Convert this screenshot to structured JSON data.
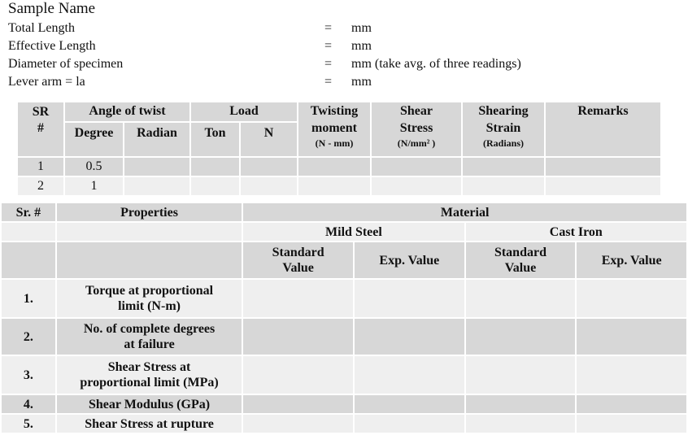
{
  "header": {
    "title": "Sample Name",
    "rows": [
      {
        "label": "Total Length",
        "eq": "=",
        "unit": "mm"
      },
      {
        "label": "Effective Length",
        "eq": "=",
        "unit": "mm"
      },
      {
        "label": "Diameter of specimen",
        "eq": "=",
        "unit": "mm (take avg. of three readings)"
      },
      {
        "label": "Lever arm = la",
        "eq": "=",
        "unit": "mm"
      }
    ]
  },
  "table1": {
    "sr_top": "SR",
    "sr_bottom": "#",
    "angle": "Angle of twist",
    "degree": "Degree",
    "radian": "Radian",
    "load": "Load",
    "ton": "Ton",
    "n": "N",
    "twisting_1": "Twisting",
    "twisting_2": "moment",
    "twisting_unit": "(N - mm)",
    "shear_1": "Shear",
    "shear_2": "Stress",
    "shear_unit": "(N/mm² )",
    "shearing_1": "Shearing",
    "shearing_2": "Strain",
    "shearing_unit": "(Radians)",
    "remarks": "Remarks",
    "rows": [
      {
        "sr": "1",
        "degree": "0.5"
      },
      {
        "sr": "2",
        "degree": "1"
      }
    ]
  },
  "table2": {
    "sr": "Sr. #",
    "properties": "Properties",
    "material": "Material",
    "mild_steel": "Mild Steel",
    "cast_iron": "Cast Iron",
    "standard_1": "Standard",
    "standard_2": "Value",
    "exp": "Exp. Value",
    "rows": [
      {
        "no": "1.",
        "l1": "Torque at proportional",
        "l2": "limit (N-m)"
      },
      {
        "no": "2.",
        "l1": "No. of complete degrees",
        "l2": "at failure"
      },
      {
        "no": "3.",
        "l1": "Shear Stress at",
        "l2": "proportional limit (MPa)"
      },
      {
        "no": "4.",
        "l1": "Shear Modulus (GPa)",
        "l2": ""
      },
      {
        "no": "5.",
        "l1": "Shear Stress at rupture",
        "l2": ""
      }
    ]
  }
}
